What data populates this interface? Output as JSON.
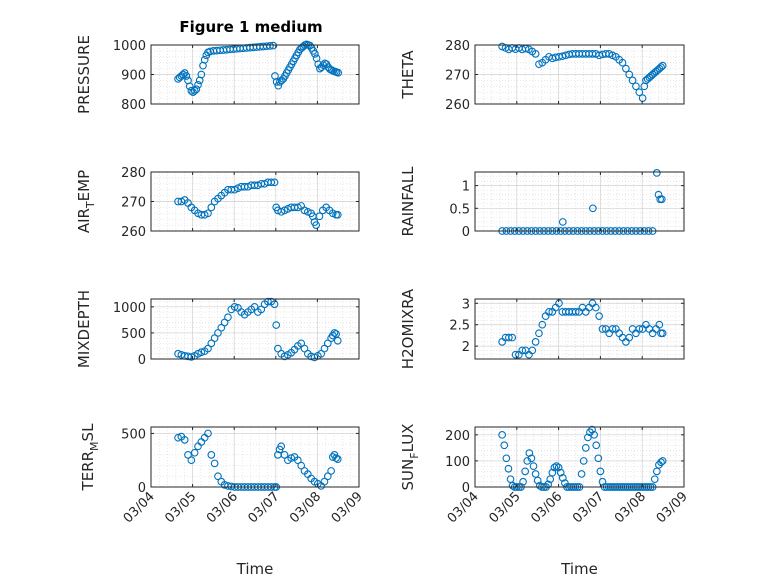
{
  "figure": {
    "title": "Figure 1 medium",
    "marker_color": "#0072bd"
  },
  "x_ticks": [
    "03/04",
    "03/05",
    "03/06",
    "03/07",
    "03/08",
    "03/09"
  ],
  "x_label": "Time",
  "chart_data": [
    {
      "type": "scatter",
      "ylabel": "PRESSURE",
      "title": "Figure 1 medium",
      "xlim": [
        0,
        5
      ],
      "ylim": [
        800,
        1000
      ],
      "yticks": [
        "800",
        "900",
        "1000"
      ],
      "grid": true,
      "x": [
        0.65,
        0.69,
        0.73,
        0.77,
        0.81,
        0.85,
        0.89,
        0.93,
        0.97,
        1.01,
        1.05,
        1.09,
        1.13,
        1.17,
        1.21,
        1.25,
        1.29,
        1.33,
        1.37,
        1.42,
        1.5,
        1.58,
        1.66,
        1.74,
        1.82,
        1.9,
        1.98,
        2.06,
        2.14,
        2.22,
        2.3,
        2.38,
        2.46,
        2.54,
        2.62,
        2.7,
        2.78,
        2.86,
        2.94,
        2.98,
        3.02,
        3.06,
        3.1,
        3.14,
        3.18,
        3.22,
        3.26,
        3.3,
        3.34,
        3.38,
        3.42,
        3.46,
        3.5,
        3.54,
        3.58,
        3.62,
        3.66,
        3.7,
        3.74,
        3.78,
        3.82,
        3.86,
        3.9,
        3.94,
        3.98,
        4.02,
        4.06,
        4.1,
        4.14,
        4.18,
        4.22,
        4.26,
        4.3,
        4.34,
        4.38,
        4.42,
        4.46,
        4.5
      ],
      "y": [
        885,
        890,
        895,
        900,
        905,
        895,
        880,
        860,
        845,
        840,
        845,
        850,
        865,
        880,
        900,
        930,
        950,
        965,
        975,
        978,
        980,
        981,
        982,
        983,
        984,
        985,
        986,
        987,
        988,
        989,
        990,
        991,
        992,
        993,
        994,
        995,
        996,
        997,
        998,
        895,
        875,
        862,
        875,
        880,
        885,
        895,
        905,
        915,
        925,
        935,
        945,
        955,
        965,
        975,
        985,
        990,
        995,
        1000,
        1002,
        1000,
        998,
        990,
        980,
        970,
        955,
        935,
        920,
        925,
        932,
        938,
        935,
        925,
        918,
        915,
        912,
        910,
        908,
        906
      ]
    },
    {
      "type": "scatter",
      "ylabel": "THETA",
      "xlim": [
        0,
        5
      ],
      "ylim": [
        260,
        280
      ],
      "yticks": [
        "260",
        "270",
        "280"
      ],
      "grid": true,
      "x": [
        0.65,
        0.73,
        0.81,
        0.89,
        0.97,
        1.05,
        1.13,
        1.21,
        1.29,
        1.37,
        1.45,
        1.53,
        1.61,
        1.69,
        1.77,
        1.85,
        1.93,
        2.01,
        2.09,
        2.17,
        2.25,
        2.33,
        2.41,
        2.49,
        2.57,
        2.65,
        2.73,
        2.81,
        2.89,
        2.97,
        3.05,
        3.13,
        3.21,
        3.29,
        3.37,
        3.45,
        3.53,
        3.61,
        3.69,
        3.77,
        3.85,
        3.93,
        4.01,
        4.05,
        4.09,
        4.13,
        4.17,
        4.21,
        4.25,
        4.29,
        4.33,
        4.37,
        4.41,
        4.45,
        4.49
      ],
      "y": [
        279.5,
        279,
        278.5,
        279,
        278.6,
        279,
        278.5,
        278.8,
        278.5,
        277.8,
        277,
        273.5,
        274,
        275,
        276,
        275.5,
        275.8,
        276,
        276.2,
        276.5,
        276.8,
        277,
        277,
        277,
        277,
        277,
        277,
        277,
        277,
        276.5,
        276.8,
        277,
        277,
        276.5,
        276,
        275,
        274,
        272,
        270,
        268,
        266,
        264,
        262,
        266,
        268,
        268.5,
        269,
        269.5,
        270,
        270.5,
        271,
        271.5,
        272,
        272.5,
        273
      ]
    },
    {
      "type": "scatter",
      "ylabel": "AIR_TEMP",
      "ylabel_main": "AIR",
      "ylabel_sub": "T",
      "ylabel_tail": "EMP",
      "xlim": [
        0,
        5
      ],
      "ylim": [
        260,
        280
      ],
      "yticks": [
        "260",
        "270",
        "280"
      ],
      "grid": true,
      "x": [
        0.65,
        0.73,
        0.81,
        0.89,
        0.97,
        1.05,
        1.13,
        1.21,
        1.29,
        1.37,
        1.45,
        1.53,
        1.61,
        1.69,
        1.77,
        1.85,
        1.93,
        2.01,
        2.09,
        2.17,
        2.25,
        2.33,
        2.41,
        2.49,
        2.57,
        2.65,
        2.73,
        2.81,
        2.89,
        2.97,
        3.01,
        3.05,
        3.13,
        3.21,
        3.29,
        3.37,
        3.45,
        3.53,
        3.61,
        3.69,
        3.77,
        3.85,
        3.89,
        3.93,
        3.97,
        4.05,
        4.13,
        4.21,
        4.29,
        4.37,
        4.45,
        4.49
      ],
      "y": [
        270,
        270,
        270.5,
        269.5,
        268,
        267,
        266,
        265.5,
        265.5,
        266,
        268,
        270,
        271,
        272,
        273,
        274,
        274,
        274,
        274.5,
        275,
        275,
        275,
        275.5,
        275.5,
        275.5,
        276,
        276,
        276.5,
        276.5,
        276.5,
        268,
        267,
        266.5,
        267,
        267.5,
        268,
        268,
        268,
        268.5,
        267,
        266.5,
        266,
        265,
        263,
        262,
        265,
        267,
        268,
        267,
        266,
        265.5,
        265.5
      ]
    },
    {
      "type": "scatter",
      "ylabel": "RAINFALL",
      "xlim": [
        0,
        5
      ],
      "ylim": [
        0,
        1.3
      ],
      "yticks": [
        "0",
        "0.5",
        "1"
      ],
      "grid": true,
      "x": [
        0.65,
        0.75,
        0.85,
        0.95,
        1.05,
        1.15,
        1.25,
        1.35,
        1.45,
        1.55,
        1.65,
        1.75,
        1.85,
        1.95,
        2.05,
        2.1,
        2.15,
        2.25,
        2.35,
        2.45,
        2.55,
        2.65,
        2.75,
        2.82,
        2.85,
        2.95,
        3.05,
        3.15,
        3.25,
        3.35,
        3.45,
        3.55,
        3.65,
        3.75,
        3.85,
        3.95,
        4.05,
        4.15,
        4.25,
        4.35,
        4.39,
        4.43,
        4.47
      ],
      "y": [
        0,
        0,
        0,
        0,
        0,
        0,
        0,
        0,
        0,
        0,
        0,
        0,
        0,
        0,
        0,
        0.2,
        0,
        0,
        0,
        0,
        0,
        0,
        0,
        0.5,
        0,
        0,
        0,
        0,
        0,
        0,
        0,
        0,
        0,
        0,
        0,
        0,
        0,
        0,
        0,
        1.28,
        0.8,
        0.7,
        0.7
      ]
    },
    {
      "type": "scatter",
      "ylabel": "MIXDEPTH",
      "xlim": [
        0,
        5
      ],
      "ylim": [
        0,
        1150
      ],
      "yticks": [
        "0",
        "500",
        "1000"
      ],
      "grid": true,
      "x": [
        0.65,
        0.73,
        0.81,
        0.89,
        0.97,
        1.05,
        1.13,
        1.21,
        1.29,
        1.37,
        1.45,
        1.53,
        1.61,
        1.69,
        1.77,
        1.85,
        1.93,
        2.01,
        2.09,
        2.17,
        2.25,
        2.33,
        2.41,
        2.49,
        2.57,
        2.65,
        2.73,
        2.81,
        2.89,
        2.97,
        3.01,
        3.05,
        3.13,
        3.21,
        3.29,
        3.37,
        3.45,
        3.53,
        3.61,
        3.69,
        3.77,
        3.85,
        3.93,
        4.01,
        4.09,
        4.17,
        4.25,
        4.33,
        4.37,
        4.41,
        4.45,
        4.49
      ],
      "y": [
        100,
        80,
        60,
        50,
        40,
        60,
        100,
        130,
        150,
        200,
        300,
        400,
        500,
        600,
        700,
        800,
        950,
        1000,
        980,
        900,
        850,
        900,
        950,
        1000,
        900,
        950,
        1050,
        1100,
        1100,
        1050,
        650,
        200,
        100,
        50,
        80,
        120,
        180,
        250,
        300,
        200,
        100,
        50,
        30,
        60,
        100,
        200,
        300,
        400,
        450,
        500,
        480,
        350
      ]
    },
    {
      "type": "scatter",
      "ylabel": "H2OMIXRA",
      "xlim": [
        0,
        5
      ],
      "ylim": [
        1.7,
        3.1
      ],
      "yticks": [
        "2",
        "2.5",
        "3"
      ],
      "grid": true,
      "x": [
        0.65,
        0.73,
        0.81,
        0.89,
        0.97,
        1.05,
        1.13,
        1.21,
        1.29,
        1.37,
        1.45,
        1.53,
        1.61,
        1.69,
        1.77,
        1.85,
        1.93,
        2.01,
        2.09,
        2.17,
        2.25,
        2.33,
        2.41,
        2.49,
        2.57,
        2.65,
        2.73,
        2.81,
        2.89,
        2.97,
        3.05,
        3.13,
        3.21,
        3.29,
        3.37,
        3.45,
        3.53,
        3.61,
        3.69,
        3.77,
        3.85,
        3.93,
        4.01,
        4.09,
        4.17,
        4.25,
        4.33,
        4.41,
        4.45,
        4.49
      ],
      "y": [
        2.1,
        2.2,
        2.2,
        2.2,
        1.8,
        1.8,
        1.9,
        1.9,
        1.8,
        1.9,
        2.1,
        2.3,
        2.5,
        2.7,
        2.8,
        2.8,
        2.9,
        3,
        2.8,
        2.8,
        2.8,
        2.8,
        2.8,
        2.8,
        2.9,
        2.8,
        2.9,
        3,
        2.9,
        2.7,
        2.4,
        2.4,
        2.3,
        2.4,
        2.4,
        2.3,
        2.2,
        2.1,
        2.2,
        2.4,
        2.3,
        2.4,
        2.4,
        2.5,
        2.4,
        2.3,
        2.4,
        2.5,
        2.3,
        2.3
      ]
    },
    {
      "type": "scatter",
      "ylabel": "TERR_MSL",
      "ylabel_main": "TERR",
      "ylabel_sub": "M",
      "ylabel_tail": "SL",
      "xlim": [
        0,
        5
      ],
      "ylim": [
        0,
        560
      ],
      "yticks": [
        "0",
        "500"
      ],
      "grid": true,
      "x": [
        0.65,
        0.73,
        0.81,
        0.89,
        0.97,
        1.05,
        1.13,
        1.21,
        1.29,
        1.37,
        1.45,
        1.53,
        1.61,
        1.69,
        1.77,
        1.85,
        1.93,
        2.01,
        2.09,
        2.17,
        2.25,
        2.33,
        2.41,
        2.49,
        2.57,
        2.65,
        2.73,
        2.81,
        2.89,
        2.97,
        3.01,
        3.05,
        3.09,
        3.13,
        3.21,
        3.29,
        3.37,
        3.45,
        3.53,
        3.61,
        3.69,
        3.77,
        3.85,
        3.93,
        4.01,
        4.09,
        4.17,
        4.25,
        4.33,
        4.37,
        4.41,
        4.45,
        4.49
      ],
      "y": [
        460,
        470,
        440,
        300,
        250,
        320,
        380,
        420,
        460,
        500,
        300,
        220,
        100,
        50,
        20,
        10,
        5,
        0,
        0,
        0,
        0,
        0,
        0,
        0,
        0,
        0,
        0,
        0,
        0,
        0,
        0,
        300,
        350,
        380,
        300,
        250,
        270,
        280,
        250,
        200,
        150,
        120,
        80,
        50,
        30,
        10,
        50,
        100,
        150,
        280,
        300,
        270,
        260
      ]
    },
    {
      "type": "scatter",
      "ylabel": "SUN_FLUX",
      "ylabel_main": "SUN",
      "ylabel_sub": "F",
      "ylabel_tail": "LUX",
      "xlim": [
        0,
        5
      ],
      "ylim": [
        0,
        230
      ],
      "yticks": [
        "0",
        "100",
        "200"
      ],
      "grid": true,
      "x": [
        0.65,
        0.7,
        0.75,
        0.8,
        0.85,
        0.9,
        0.95,
        1.0,
        1.05,
        1.1,
        1.15,
        1.2,
        1.25,
        1.3,
        1.35,
        1.4,
        1.45,
        1.5,
        1.55,
        1.6,
        1.65,
        1.7,
        1.75,
        1.8,
        1.85,
        1.9,
        1.95,
        2.0,
        2.05,
        2.1,
        2.15,
        2.2,
        2.25,
        2.3,
        2.35,
        2.4,
        2.45,
        2.5,
        2.55,
        2.6,
        2.65,
        2.7,
        2.75,
        2.8,
        2.85,
        2.9,
        2.95,
        3.0,
        3.05,
        3.1,
        3.15,
        3.2,
        3.25,
        3.3,
        3.35,
        3.4,
        3.45,
        3.5,
        3.55,
        3.6,
        3.65,
        3.7,
        3.75,
        3.8,
        3.85,
        3.9,
        3.95,
        4.0,
        4.05,
        4.1,
        4.15,
        4.2,
        4.25,
        4.3,
        4.35,
        4.4,
        4.45,
        4.49
      ],
      "y": [
        200,
        160,
        110,
        70,
        30,
        5,
        0,
        0,
        0,
        0,
        20,
        60,
        100,
        130,
        110,
        80,
        50,
        25,
        5,
        0,
        0,
        0,
        10,
        30,
        55,
        75,
        80,
        75,
        55,
        35,
        15,
        0,
        0,
        0,
        0,
        0,
        0,
        0,
        50,
        100,
        150,
        190,
        210,
        220,
        200,
        160,
        110,
        60,
        20,
        0,
        0,
        0,
        0,
        0,
        0,
        0,
        0,
        0,
        0,
        0,
        0,
        0,
        0,
        0,
        0,
        0,
        0,
        0,
        0,
        0,
        0,
        0,
        0,
        30,
        60,
        85,
        95,
        100
      ]
    }
  ]
}
